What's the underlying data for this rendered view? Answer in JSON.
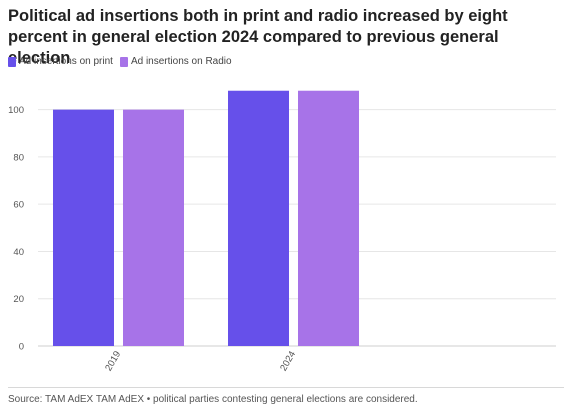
{
  "chart_data": {
    "type": "bar",
    "title": "Political ad insertions both in print and radio increased by eight percent in general election 2024 compared to previous general election",
    "xlabel": "",
    "ylabel": "",
    "categories": [
      "2019",
      "2024"
    ],
    "series": [
      {
        "name": "Ad insertions on print",
        "color": "#6650ea",
        "values": [
          100,
          108
        ]
      },
      {
        "name": "Ad insertions on Radio",
        "color": "#a773e8",
        "values": [
          100,
          108
        ]
      }
    ],
    "ylim": [
      0,
      110
    ],
    "yticks": [
      0,
      20,
      40,
      60,
      80,
      100
    ],
    "ytick_labels": [
      "0",
      "20",
      "40",
      "60",
      "80",
      "100"
    ],
    "grid": true,
    "legend_position": "top-left",
    "source": "Source: TAM AdEX TAM AdEX • political parties contesting general elections are considered."
  },
  "colors": {
    "grid": "#e6e6e6",
    "axis_text": "#555555"
  }
}
